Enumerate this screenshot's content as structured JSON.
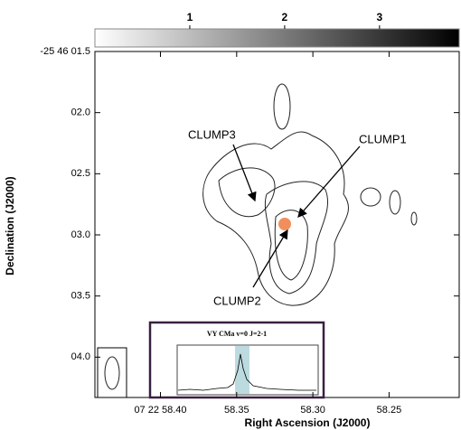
{
  "chart_data": {
    "type": "contour-map",
    "xlabel": "Right Ascension (J2000)",
    "ylabel": "Declination (J2000)",
    "xlim": [
      58.443,
      58.204
    ],
    "xticks": [
      {
        "value": 58.4,
        "label": "07 22 58.40"
      },
      58.35,
      {
        "value": 58.3,
        "label": "58.30"
      },
      58.25
    ],
    "ylim": [
      1.5,
      4.33
    ],
    "yticks": [
      {
        "value": 1.5,
        "label": "-25 46 01.5"
      },
      {
        "value": 2.0,
        "label": "02.0"
      },
      {
        "value": 2.5,
        "label": "02.5"
      },
      {
        "value": 3.0,
        "label": "03.0"
      },
      {
        "value": 3.5,
        "label": "03.5"
      },
      {
        "value": 4.0,
        "label": "04.0"
      }
    ],
    "colorbar": {
      "lim": [
        0,
        3.84
      ],
      "ticks": [
        1,
        2,
        3
      ],
      "cmap": [
        "#ffffff",
        "#000000"
      ]
    },
    "annotations": [
      "CLUMP1",
      "CLUMP2",
      "CLUMP3"
    ],
    "inset_title": "VY CMa v=0 J=2-1"
  }
}
